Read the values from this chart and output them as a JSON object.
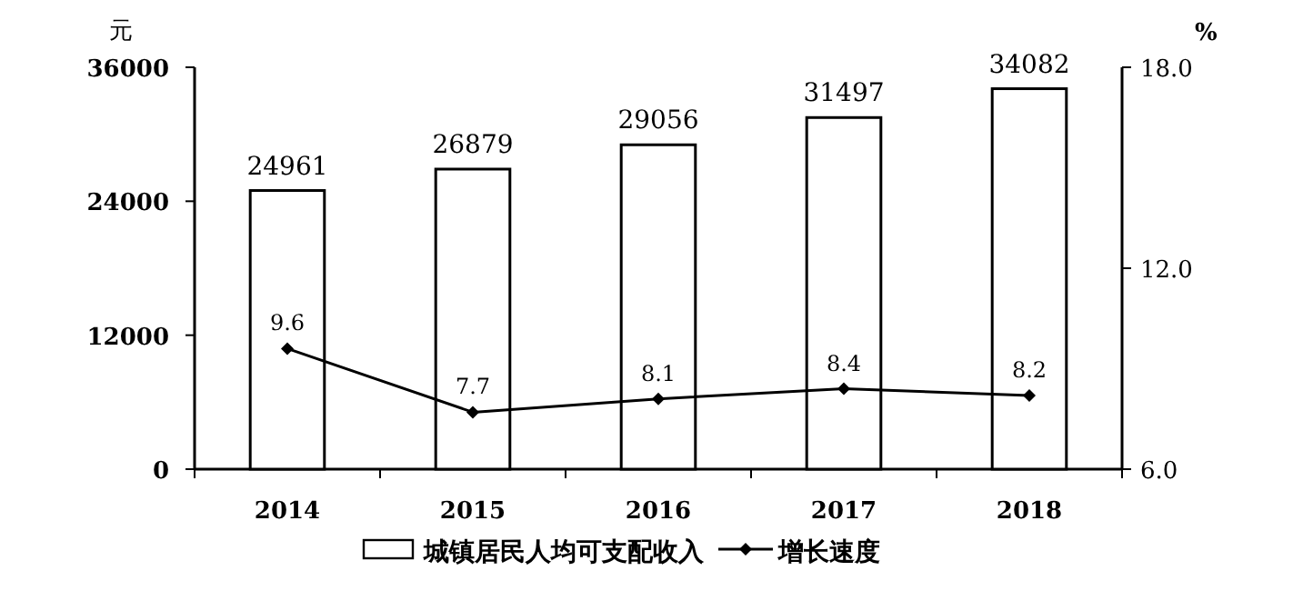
{
  "chart_data": {
    "type": "bar",
    "categories": [
      "2014",
      "2015",
      "2016",
      "2017",
      "2018"
    ],
    "ylabel": "元",
    "y2label": "%",
    "series": [
      {
        "name": "城镇居民人均可支配收入",
        "color": "#ffffff",
        "values": [
          24961,
          26879,
          29056,
          31497,
          34082
        ]
      },
      {
        "name": "增长速度",
        "type": "line",
        "axis": "y2",
        "color": "#000000",
        "marker": "diamond",
        "values": [
          9.6,
          7.7,
          8.1,
          8.4,
          8.2
        ]
      }
    ],
    "ylim": [
      0,
      36000
    ],
    "yticks": [
      0,
      12000,
      24000,
      36000
    ],
    "y2lim": [
      6,
      18
    ],
    "y2ticks": [
      {
        "value": 6,
        "label": "6.0"
      },
      {
        "value": 12,
        "label": "12.0"
      },
      {
        "value": 18,
        "label": "18.0"
      }
    ],
    "data_labels": true,
    "legend": "bottom",
    "grid": false
  }
}
